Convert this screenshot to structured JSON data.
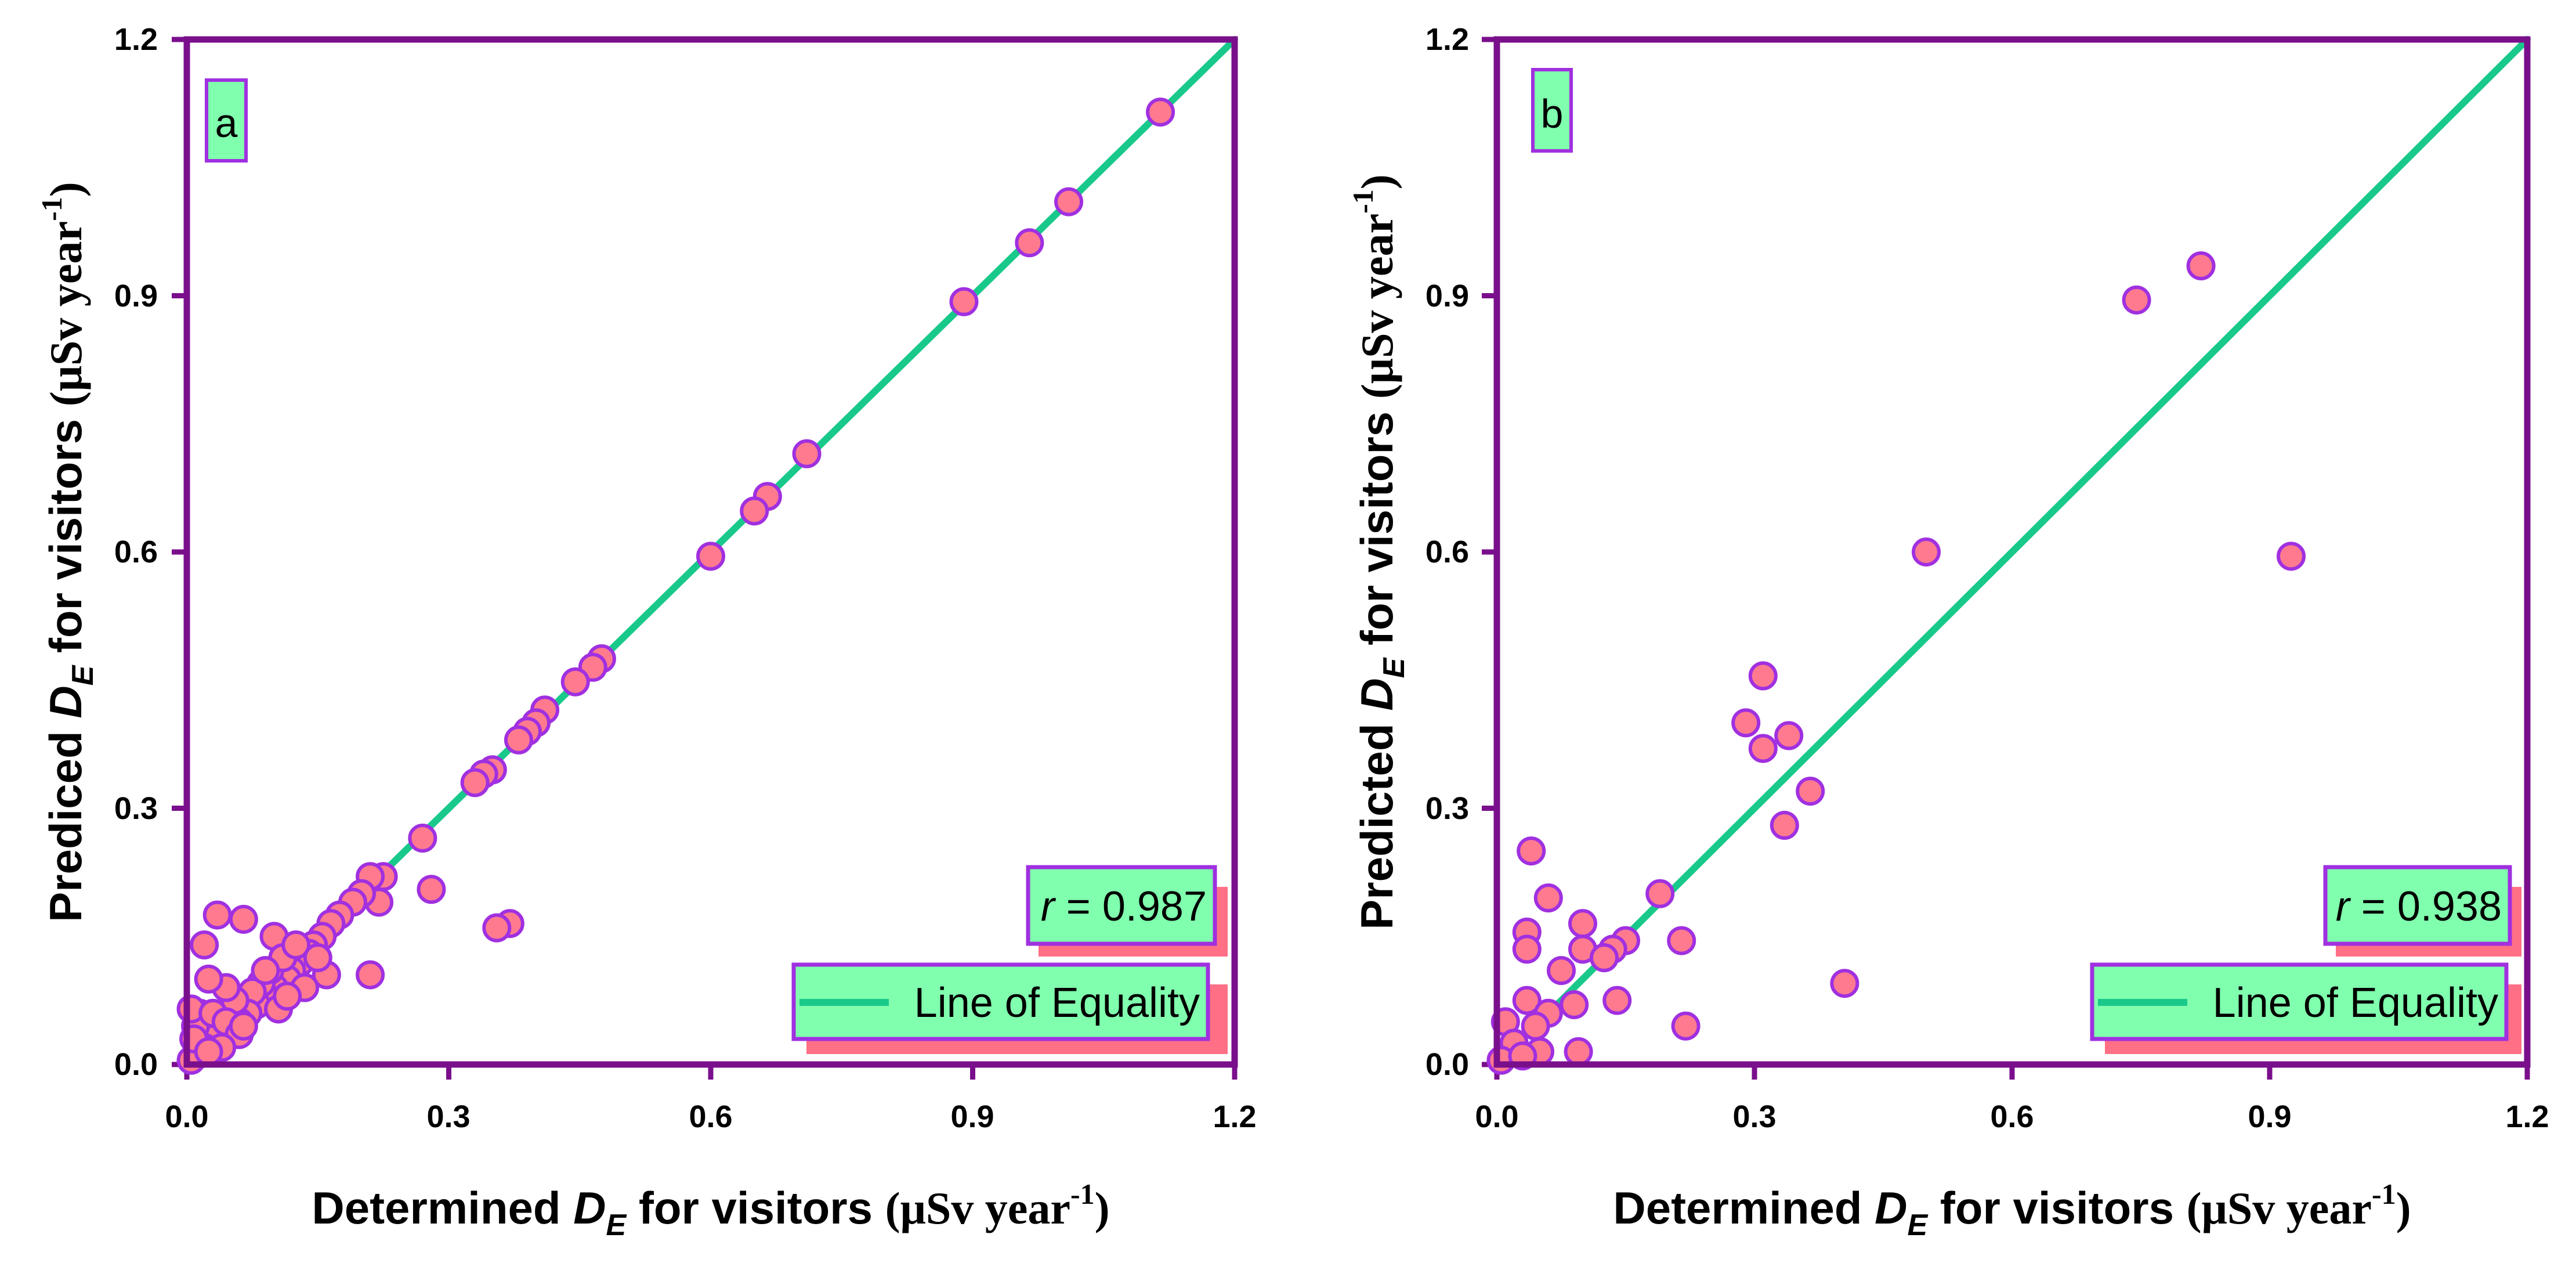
{
  "colors": {
    "frame": "#7a0f8c",
    "line": "#19c98a",
    "marker_fill": "#ff7a8f",
    "marker_edge": "#a030e0",
    "box_fill": "#80ffae",
    "box_edge": "#a030e0",
    "box_shadow": "#ff6f85"
  },
  "chart_data": [
    {
      "type": "scatter",
      "panel_label": "a",
      "xlabel": {
        "prefix": "Determined ",
        "sym": "D",
        "sub": "E",
        "mid": " for visitors ",
        "unit_open": "(μSv year",
        "sup": "-1",
        "unit_close": ")"
      },
      "ylabel": {
        "prefix": "Prediced ",
        "sym": "D",
        "sub": "E",
        "mid": " for visitors ",
        "unit_open": "(μSv year",
        "sup": "-1",
        "unit_close": ")"
      },
      "xlim": [
        0,
        1.2
      ],
      "ylim": [
        0,
        1.2
      ],
      "xticks": [
        "0.0",
        "0.3",
        "0.6",
        "0.9",
        "1.2"
      ],
      "yticks": [
        "0.0",
        "0.3",
        "0.6",
        "0.9",
        "1.2"
      ],
      "stat": {
        "sym": "r",
        "text": " = 0.987"
      },
      "legend": {
        "label": "Line of Equality",
        "position": "bottom-right"
      },
      "line_of_equality": [
        [
          0,
          0
        ],
        [
          1.2,
          1.2
        ]
      ],
      "points": [
        [
          1.115,
          1.115
        ],
        [
          1.01,
          1.01
        ],
        [
          0.965,
          0.962
        ],
        [
          0.89,
          0.893
        ],
        [
          0.71,
          0.715
        ],
        [
          0.665,
          0.665
        ],
        [
          0.65,
          0.648
        ],
        [
          0.6,
          0.595
        ],
        [
          0.475,
          0.475
        ],
        [
          0.465,
          0.465
        ],
        [
          0.445,
          0.448
        ],
        [
          0.41,
          0.415
        ],
        [
          0.4,
          0.4
        ],
        [
          0.39,
          0.39
        ],
        [
          0.38,
          0.38
        ],
        [
          0.35,
          0.345
        ],
        [
          0.34,
          0.34
        ],
        [
          0.33,
          0.33
        ],
        [
          0.28,
          0.205
        ],
        [
          0.27,
          0.265
        ],
        [
          0.37,
          0.165
        ],
        [
          0.355,
          0.16
        ],
        [
          0.225,
          0.22
        ],
        [
          0.22,
          0.19
        ],
        [
          0.21,
          0.22
        ],
        [
          0.2,
          0.2
        ],
        [
          0.21,
          0.105
        ],
        [
          0.19,
          0.19
        ],
        [
          0.175,
          0.175
        ],
        [
          0.165,
          0.165
        ],
        [
          0.16,
          0.105
        ],
        [
          0.155,
          0.15
        ],
        [
          0.145,
          0.14
        ],
        [
          0.14,
          0.13
        ],
        [
          0.13,
          0.12
        ],
        [
          0.12,
          0.11
        ],
        [
          0.115,
          0.1
        ],
        [
          0.1,
          0.15
        ],
        [
          0.1,
          0.09
        ],
        [
          0.095,
          0.11
        ],
        [
          0.09,
          0.08
        ],
        [
          0.085,
          0.095
        ],
        [
          0.08,
          0.07
        ],
        [
          0.075,
          0.085
        ],
        [
          0.07,
          0.06
        ],
        [
          0.065,
          0.17
        ],
        [
          0.06,
          0.05
        ],
        [
          0.055,
          0.075
        ],
        [
          0.05,
          0.045
        ],
        [
          0.045,
          0.09
        ],
        [
          0.04,
          0.035
        ],
        [
          0.035,
          0.175
        ],
        [
          0.03,
          0.03
        ],
        [
          0.025,
          0.1
        ],
        [
          0.02,
          0.02
        ],
        [
          0.02,
          0.14
        ],
        [
          0.015,
          0.06
        ],
        [
          0.01,
          0.01
        ],
        [
          0.01,
          0.045
        ],
        [
          0.005,
          0.005
        ],
        [
          0.005,
          0.065
        ],
        [
          0.008,
          0.03
        ],
        [
          0.03,
          0.06
        ],
        [
          0.045,
          0.05
        ],
        [
          0.06,
          0.035
        ],
        [
          0.11,
          0.125
        ],
        [
          0.125,
          0.14
        ],
        [
          0.135,
          0.09
        ],
        [
          0.15,
          0.125
        ],
        [
          0.105,
          0.065
        ],
        [
          0.09,
          0.11
        ],
        [
          0.115,
          0.08
        ],
        [
          0.065,
          0.045
        ],
        [
          0.04,
          0.02
        ],
        [
          0.025,
          0.015
        ]
      ]
    },
    {
      "type": "scatter",
      "panel_label": "b",
      "xlabel": {
        "prefix": "Determined ",
        "sym": "D",
        "sub": "E",
        "mid": " for visitors ",
        "unit_open": "(μSv year",
        "sup": "-1",
        "unit_close": ")"
      },
      "ylabel": {
        "prefix": "Predicted ",
        "sym": "D",
        "sub": "E",
        "mid": " for visitors ",
        "unit_open": "(μSv year",
        "sup": "-1",
        "unit_close": ")"
      },
      "xlim": [
        0,
        1.2
      ],
      "ylim": [
        0,
        1.2
      ],
      "xticks": [
        "0.0",
        "0.3",
        "0.6",
        "0.9",
        "1.2"
      ],
      "yticks": [
        "0.0",
        "0.3",
        "0.6",
        "0.9",
        "1.2"
      ],
      "stat": {
        "sym": "r",
        "text": " = 0.938"
      },
      "legend": {
        "label": "Line of Equality",
        "position": "bottom-right"
      },
      "line_of_equality": [
        [
          0,
          0
        ],
        [
          1.2,
          1.2
        ]
      ],
      "points": [
        [
          0.82,
          0.935
        ],
        [
          0.745,
          0.895
        ],
        [
          0.925,
          0.595
        ],
        [
          0.5,
          0.6
        ],
        [
          0.31,
          0.455
        ],
        [
          0.29,
          0.4
        ],
        [
          0.34,
          0.385
        ],
        [
          0.31,
          0.37
        ],
        [
          0.365,
          0.32
        ],
        [
          0.335,
          0.28
        ],
        [
          0.405,
          0.095
        ],
        [
          0.04,
          0.25
        ],
        [
          0.06,
          0.195
        ],
        [
          0.19,
          0.2
        ],
        [
          0.1,
          0.165
        ],
        [
          0.035,
          0.155
        ],
        [
          0.215,
          0.145
        ],
        [
          0.15,
          0.145
        ],
        [
          0.035,
          0.135
        ],
        [
          0.1,
          0.135
        ],
        [
          0.135,
          0.135
        ],
        [
          0.125,
          0.125
        ],
        [
          0.075,
          0.11
        ],
        [
          0.09,
          0.07
        ],
        [
          0.14,
          0.075
        ],
        [
          0.035,
          0.075
        ],
        [
          0.06,
          0.06
        ],
        [
          0.045,
          0.045
        ],
        [
          0.22,
          0.045
        ],
        [
          0.01,
          0.05
        ],
        [
          0.02,
          0.025
        ],
        [
          0.05,
          0.015
        ],
        [
          0.095,
          0.015
        ],
        [
          0.005,
          0.005
        ],
        [
          0.03,
          0.01
        ]
      ]
    }
  ]
}
